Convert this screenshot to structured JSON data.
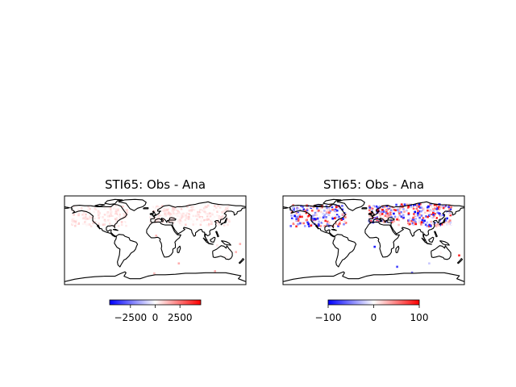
{
  "chart_data": [
    {
      "type": "heatmap",
      "title": "STI65: Obs - Ana",
      "map": "world-coastlines",
      "colormap": "blue-white-red",
      "colorbar": {
        "vmin": -4600,
        "vmax": 4600,
        "ticks": [
          -2500,
          0,
          2500
        ],
        "tick_labels": [
          "−2500",
          "0",
          "2500"
        ],
        "orientation": "horizontal",
        "placement": "below"
      },
      "point_clusters": [
        {
          "name": "north-america",
          "lon": [
            -165,
            -55
          ],
          "lat": [
            28,
            70
          ],
          "value_range": [
            0,
            900
          ],
          "n": 170
        },
        {
          "name": "europe",
          "lon": [
            -10,
            40
          ],
          "lat": [
            36,
            70
          ],
          "value_range": [
            0,
            900
          ],
          "n": 90
        },
        {
          "name": "asia",
          "lon": [
            40,
            150
          ],
          "lat": [
            30,
            72
          ],
          "value_range": [
            0,
            900
          ],
          "n": 170
        },
        {
          "name": "isolated",
          "lon": [
            -30,
            175
          ],
          "lat": [
            -70,
            15
          ],
          "value_range": [
            0,
            1500
          ],
          "n": 8
        }
      ]
    },
    {
      "type": "heatmap",
      "title": "STI65: Obs - Ana",
      "map": "world-coastlines",
      "colormap": "blue-white-red",
      "colorbar": {
        "vmin": -100,
        "vmax": 100,
        "ticks": [
          -100,
          0,
          100
        ],
        "tick_labels": [
          "−100",
          "0",
          "100"
        ],
        "orientation": "horizontal",
        "placement": "below"
      },
      "point_clusters": [
        {
          "name": "north-america",
          "lon": [
            -165,
            -55
          ],
          "lat": [
            28,
            72
          ],
          "value_range": [
            -100,
            100
          ],
          "n": 200
        },
        {
          "name": "europe",
          "lon": [
            -10,
            40
          ],
          "lat": [
            36,
            70
          ],
          "value_range": [
            -100,
            100
          ],
          "n": 110
        },
        {
          "name": "asia",
          "lon": [
            40,
            155
          ],
          "lat": [
            28,
            74
          ],
          "value_range": [
            -100,
            100
          ],
          "n": 230
        },
        {
          "name": "isolated",
          "lon": [
            -30,
            175
          ],
          "lat": [
            -70,
            15
          ],
          "value_range": [
            -100,
            100
          ],
          "n": 6
        }
      ]
    }
  ]
}
